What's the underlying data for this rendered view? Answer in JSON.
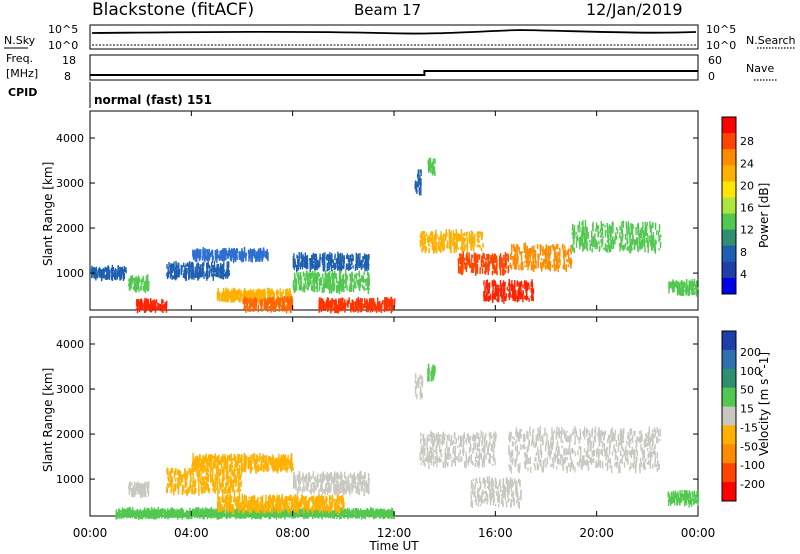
{
  "header": {
    "station": "Blackstone (fitACF)",
    "beam": "Beam 17",
    "date": "12/Jan/2019"
  },
  "top_panels": {
    "nsky_label": "N.Sky",
    "nsearch_label": "N.Search",
    "nsky_ticks": [
      "10^5",
      "10^0"
    ],
    "nsearch_ticks": [
      "10^5",
      "10^0"
    ],
    "freq_label": "Freq.",
    "freq_unit": "[MHz]",
    "freq_ticks": [
      "18",
      "8"
    ],
    "nave_label": "Nave",
    "nave_ticks": [
      "60",
      "0"
    ],
    "cpid_label": "CPID",
    "cpid_text": "normal (fast) 151",
    "freq_step_time_hours": 13.2
  },
  "x_axis": {
    "label": "Time UT",
    "ticks": [
      "00:00",
      "04:00",
      "08:00",
      "12:00",
      "16:00",
      "20:00",
      "00:00"
    ],
    "range_hours": [
      0,
      24
    ]
  },
  "chart_data": [
    {
      "type": "heatmap",
      "title": "",
      "ylabel": "Slant Range [km]",
      "xlabel": "",
      "yticks": [
        1000,
        2000,
        3000,
        4000
      ],
      "ylim": [
        180,
        4600
      ],
      "colorbar": {
        "label": "Power [dB]",
        "ticks": [
          "28",
          "24",
          "20",
          "16",
          "12",
          "8",
          "4"
        ],
        "colors": [
          "#ff0000",
          "#ff4400",
          "#ff8c00",
          "#ffb000",
          "#ffe600",
          "#aee63c",
          "#52c850",
          "#2f8f70",
          "#1f5fb0",
          "#1e3ea8",
          "#0000e6"
        ]
      },
      "bands": [
        {
          "t0": 0.0,
          "t1": 1.4,
          "r0": 900,
          "r1": 1100,
          "color": "#1f5fb0"
        },
        {
          "t0": 1.5,
          "t1": 2.3,
          "r0": 640,
          "r1": 900,
          "color": "#52c850"
        },
        {
          "t0": 1.8,
          "t1": 3.0,
          "r0": 180,
          "r1": 380,
          "color": "#ff2200"
        },
        {
          "t0": 3.0,
          "t1": 5.5,
          "r0": 900,
          "r1": 1200,
          "color": "#1f5fb0"
        },
        {
          "t0": 4.0,
          "t1": 7.0,
          "r0": 1300,
          "r1": 1500,
          "color": "#2f6fd0"
        },
        {
          "t0": 5.0,
          "t1": 8.0,
          "r0": 400,
          "r1": 600,
          "color": "#ffb000"
        },
        {
          "t0": 6.0,
          "t1": 8.0,
          "r0": 180,
          "r1": 420,
          "color": "#ff6600"
        },
        {
          "t0": 8.0,
          "t1": 11.0,
          "r0": 1100,
          "r1": 1400,
          "color": "#1f5fb0"
        },
        {
          "t0": 8.0,
          "t1": 11.0,
          "r0": 600,
          "r1": 1000,
          "color": "#52c850"
        },
        {
          "t0": 9.0,
          "t1": 12.0,
          "r0": 180,
          "r1": 400,
          "color": "#ff3300"
        },
        {
          "t0": 13.0,
          "t1": 15.5,
          "r0": 1500,
          "r1": 1900,
          "color": "#ffb000"
        },
        {
          "t0": 14.5,
          "t1": 16.5,
          "r0": 1000,
          "r1": 1400,
          "color": "#ff4400"
        },
        {
          "t0": 15.5,
          "t1": 17.5,
          "r0": 400,
          "r1": 800,
          "color": "#ff2200"
        },
        {
          "t0": 16.5,
          "t1": 19.0,
          "r0": 1100,
          "r1": 1600,
          "color": "#ff8c00"
        },
        {
          "t0": 19.0,
          "t1": 22.5,
          "r0": 1500,
          "r1": 2100,
          "color": "#52c850"
        },
        {
          "t0": 12.8,
          "t1": 13.1,
          "r0": 2800,
          "r1": 3300,
          "color": "#1f5fb0"
        },
        {
          "t0": 13.3,
          "t1": 13.6,
          "r0": 3200,
          "r1": 3500,
          "color": "#52c850"
        },
        {
          "t0": 22.8,
          "t1": 24.0,
          "r0": 550,
          "r1": 800,
          "color": "#52c850"
        }
      ]
    },
    {
      "type": "heatmap",
      "title": "",
      "ylabel": "Slant Range [km]",
      "xlabel": "",
      "yticks": [
        1000,
        2000,
        3000,
        4000
      ],
      "ylim": [
        180,
        4600
      ],
      "colorbar": {
        "label": "Velocity [m s^-1]",
        "ticks": [
          "200",
          "100",
          "50",
          "15",
          "-15",
          "-50",
          "-100",
          "-200"
        ],
        "colors": [
          "#1f3fa8",
          "#2f6fb0",
          "#2f8f70",
          "#52c850",
          "#c8c8c0",
          "#ffb000",
          "#ff8c00",
          "#ff4400",
          "#ff0000"
        ]
      },
      "bands": [
        {
          "t0": 1.5,
          "t1": 2.3,
          "r0": 640,
          "r1": 900,
          "color": "#c8c8c0"
        },
        {
          "t0": 1.0,
          "t1": 12.0,
          "r0": 180,
          "r1": 300,
          "color": "#52c850"
        },
        {
          "t0": 3.0,
          "t1": 6.0,
          "r0": 700,
          "r1": 1200,
          "color": "#ffb000"
        },
        {
          "t0": 4.0,
          "t1": 8.0,
          "r0": 1200,
          "r1": 1500,
          "color": "#ffb000"
        },
        {
          "t0": 5.0,
          "t1": 10.0,
          "r0": 300,
          "r1": 600,
          "color": "#ffb000"
        },
        {
          "t0": 8.0,
          "t1": 11.0,
          "r0": 700,
          "r1": 1100,
          "color": "#c8c8c0"
        },
        {
          "t0": 13.0,
          "t1": 16.0,
          "r0": 1300,
          "r1": 2000,
          "color": "#c8c8c0"
        },
        {
          "t0": 15.0,
          "t1": 17.0,
          "r0": 400,
          "r1": 1000,
          "color": "#c8c8c0"
        },
        {
          "t0": 16.5,
          "t1": 22.5,
          "r0": 1200,
          "r1": 2100,
          "color": "#c8c8c0"
        },
        {
          "t0": 12.8,
          "t1": 13.1,
          "r0": 2800,
          "r1": 3300,
          "color": "#c8c8c0"
        },
        {
          "t0": 13.3,
          "t1": 13.6,
          "r0": 3200,
          "r1": 3500,
          "color": "#52c850"
        },
        {
          "t0": 22.8,
          "t1": 24.0,
          "r0": 450,
          "r1": 700,
          "color": "#52c850"
        }
      ]
    }
  ]
}
